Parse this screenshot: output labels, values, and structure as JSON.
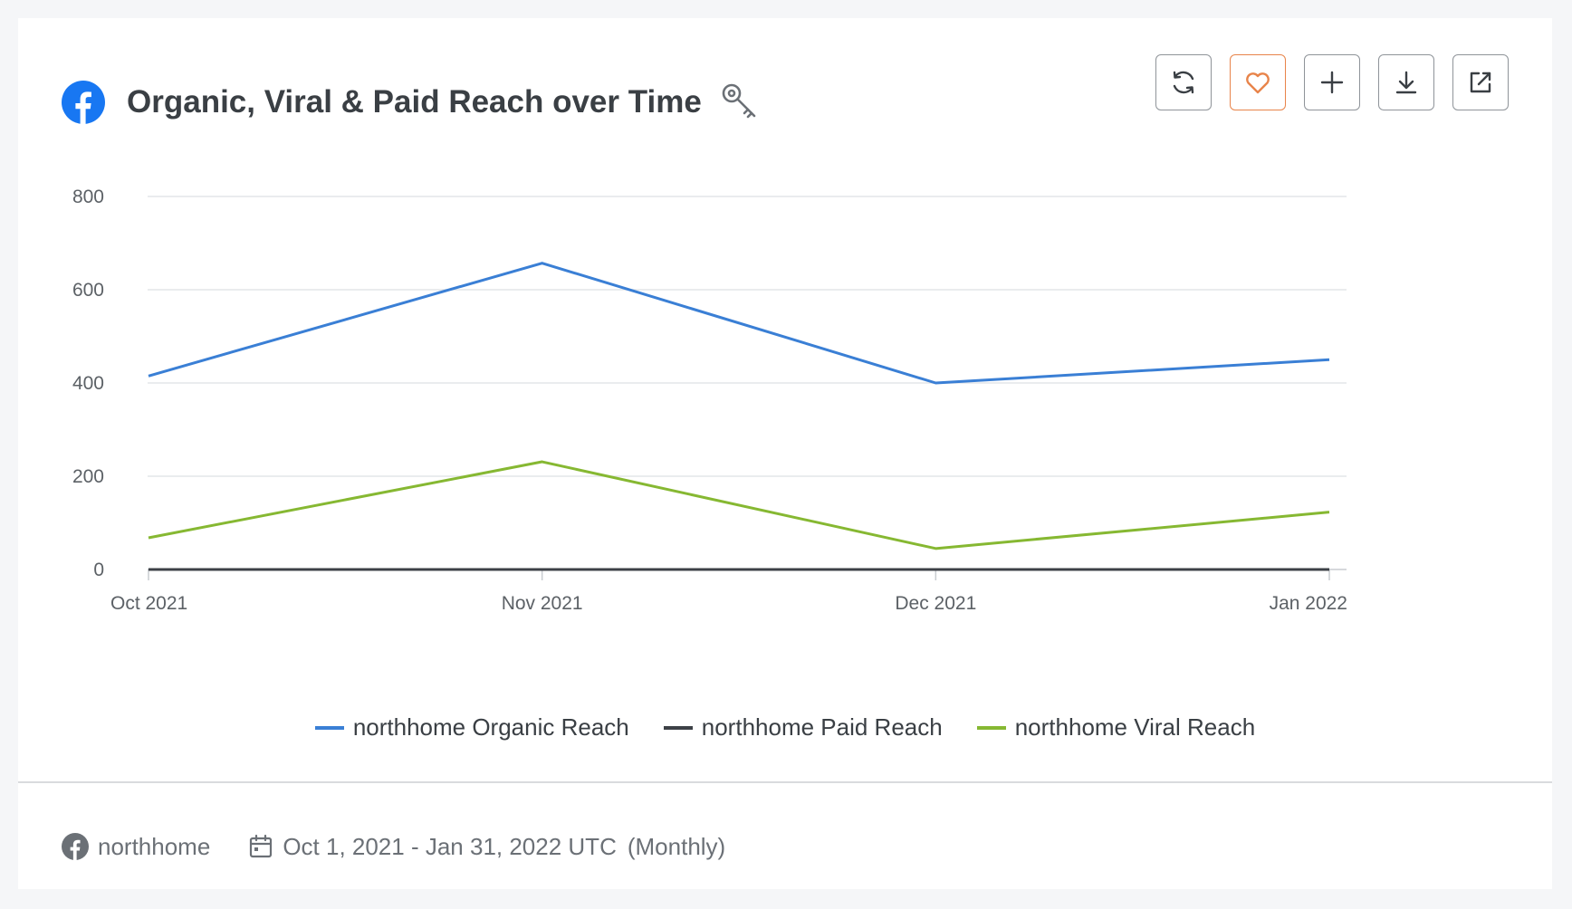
{
  "header": {
    "title": "Organic, Viral & Paid Reach over Time",
    "platform_icon": "facebook-icon",
    "key_icon": "key-icon"
  },
  "toolbar": {
    "buttons": [
      {
        "name": "refresh-button",
        "icon": "refresh-icon"
      },
      {
        "name": "favorite-button",
        "icon": "heart-icon",
        "accent": "#e8844a"
      },
      {
        "name": "add-button",
        "icon": "plus-icon"
      },
      {
        "name": "download-button",
        "icon": "download-icon"
      },
      {
        "name": "open-external-button",
        "icon": "external-link-icon"
      }
    ]
  },
  "chart_data": {
    "type": "line",
    "title": "Organic, Viral & Paid Reach over Time",
    "x": [
      "Oct 2021",
      "Nov 2021",
      "Dec 2021",
      "Jan 2022"
    ],
    "ylim": [
      0,
      800
    ],
    "yticks": [
      0,
      200,
      400,
      600,
      800
    ],
    "grid": true,
    "legend_position": "bottom",
    "series": [
      {
        "name": "northhome Organic Reach",
        "color": "#3a7fd5",
        "values": [
          415,
          657,
          400,
          450
        ]
      },
      {
        "name": "northhome Paid Reach",
        "color": "#3d4147",
        "values": [
          0,
          0,
          0,
          0
        ]
      },
      {
        "name": "northhome Viral Reach",
        "color": "#86b832",
        "values": [
          68,
          231,
          45,
          123
        ]
      }
    ]
  },
  "footer": {
    "account": "northhome",
    "date_range": "Oct 1, 2021 - Jan 31, 2022 UTC",
    "granularity": "(Monthly)"
  },
  "colors": {
    "facebook_blue": "#1877f2",
    "grid": "#e3e5e8",
    "axis": "#c9ccd0"
  }
}
